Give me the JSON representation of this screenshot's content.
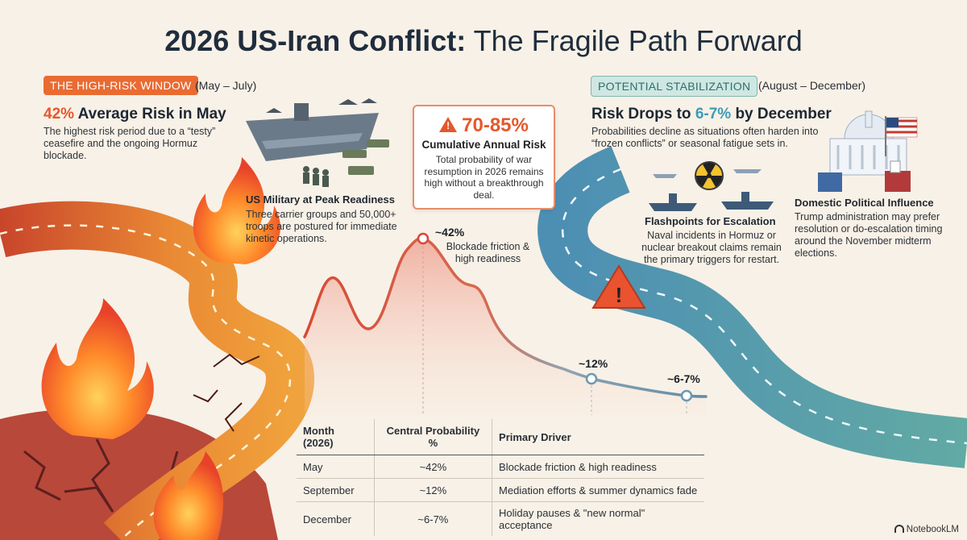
{
  "title": {
    "bold": "2026 US-Iran Conflict:",
    "rest": " The Fragile Path Forward"
  },
  "left_panel": {
    "tag": "THE HIGH-RISK WINDOW",
    "range": "(May – July)",
    "headline_value": "42%",
    "headline_text": " Average Risk in May",
    "body": "The highest risk period due to a “testy” ceasefire and the ongoing Hormuz blockade."
  },
  "military": {
    "caption": "US Military at Peak Readiness",
    "body": "Three carrier groups and 50,000+ troops are postured for immediate kinetic operations."
  },
  "callout": {
    "value": "70-85%",
    "label": "Cumulative Annual Risk",
    "body": "Total probability of war resumption in 2026 remains high without a breakthrough deal."
  },
  "right_panel": {
    "tag": "POTENTIAL STABILIZATION",
    "range": "(August – December)",
    "headline_pre": "Risk Drops to ",
    "headline_value": "6-7%",
    "headline_post": " by December",
    "body": "Probabilities decline as situations often harden into “frozen conflicts” or seasonal fatigue sets in."
  },
  "domestic": {
    "caption": "Domestic Political Influence",
    "body": "Trump administration may prefer resolution or do-escalation timing around the November midterm elections."
  },
  "flashpoints": {
    "caption": "Flashpoints for Escalation",
    "body": "Naval incidents in Hormuz or nuclear breakout claims remain the primary triggers for restart."
  },
  "curve_points": [
    {
      "label": "~42%",
      "note": "Blockade friction & high readiness"
    },
    {
      "label": "~12%",
      "note": ""
    },
    {
      "label": "~6-7%",
      "note": ""
    }
  ],
  "table": {
    "headers": [
      "Month (2026)",
      "Central Probability %",
      "Primary Driver"
    ],
    "rows": [
      [
        "May",
        "~42%",
        "Blockade friction & high readiness"
      ],
      [
        "September",
        "~12%",
        "Mediation efforts & summer dynamics fade"
      ],
      [
        "December",
        "~6-7%",
        "Holiday pauses & \"new normal\" acceptance"
      ]
    ]
  },
  "footer": {
    "brand": "NotebookLM"
  },
  "colors": {
    "risk": "#e5582b",
    "calm": "#3c9bb8",
    "road_hot": "#e9772f",
    "road_cool": "#4e8fb0"
  },
  "icons": [
    "fire-icon",
    "aircraft-carrier-icon",
    "warning-icon",
    "radiation-icon",
    "capitol-icon",
    "us-flag-icon",
    "ballot-box-icon",
    "warship-icon"
  ]
}
